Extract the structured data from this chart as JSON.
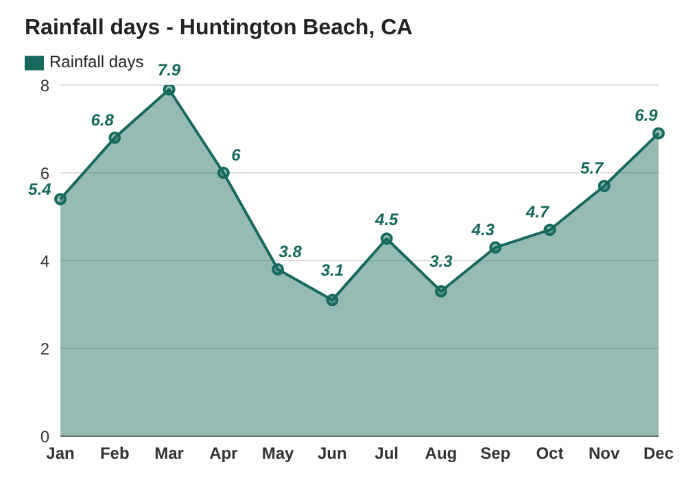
{
  "chart_data": {
    "type": "area",
    "title": "Rainfall days - Huntington Beach, CA",
    "categories": [
      "Jan",
      "Feb",
      "Mar",
      "Apr",
      "May",
      "Jun",
      "Jul",
      "Aug",
      "Sep",
      "Oct",
      "Nov",
      "Dec"
    ],
    "series": [
      {
        "name": "Rainfall days",
        "color": "#16695c",
        "values": [
          5.4,
          6.8,
          7.9,
          6,
          3.8,
          3.1,
          4.5,
          3.3,
          4.3,
          4.7,
          5.7,
          6.9
        ]
      }
    ],
    "ylim": [
      0,
      8
    ],
    "yticks": [
      0,
      2,
      4,
      6,
      8
    ],
    "grid": "y",
    "legend": "top left",
    "marker": "circle",
    "data_labels": true
  }
}
